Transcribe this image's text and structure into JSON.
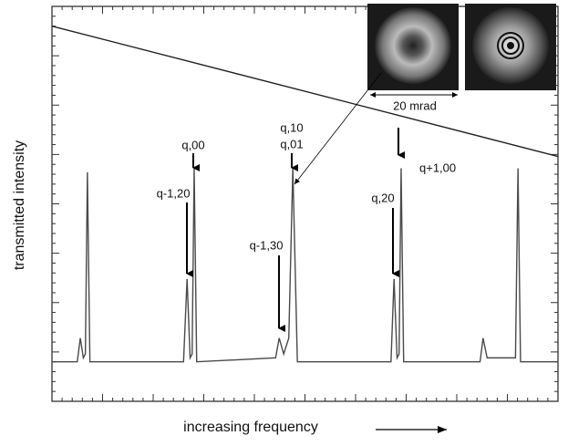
{
  "chart_data": {
    "type": "line",
    "x_label": "increasing frequency",
    "y_label": "transmitted intensity",
    "xlim": [
      0,
      100
    ],
    "ylim": [
      0,
      1
    ],
    "series": [
      {
        "color": "#4a4a4a",
        "x": [
          0,
          5.0,
          5.6,
          6.2,
          6.6,
          7.0,
          7.5,
          26.0,
          26.7,
          27.3,
          27.7,
          28.1,
          28.6,
          44.2,
          44.9,
          45.8,
          46.8,
          47.6,
          48.5,
          67.0,
          67.6,
          68.2,
          68.6,
          69.0,
          69.5,
          84.6,
          85.2,
          86.0,
          91.6,
          92.1,
          92.6,
          100
        ],
        "values": [
          0.1,
          0.1,
          0.16,
          0.11,
          0.12,
          0.58,
          0.1,
          0.1,
          0.31,
          0.11,
          0.12,
          0.59,
          0.1,
          0.11,
          0.16,
          0.12,
          0.16,
          0.59,
          0.1,
          0.1,
          0.31,
          0.11,
          0.12,
          0.59,
          0.1,
          0.1,
          0.16,
          0.11,
          0.11,
          0.59,
          0.1,
          0.1
        ]
      },
      {
        "color": "#222222",
        "x": [
          0,
          100
        ],
        "values": [
          0.95,
          0.62
        ]
      }
    ],
    "annotations": [
      "q,00",
      "q-1,20",
      "q,10",
      "q,01",
      "q-1,30",
      "q,20",
      "q+1,00",
      "20 mrad"
    ]
  }
}
